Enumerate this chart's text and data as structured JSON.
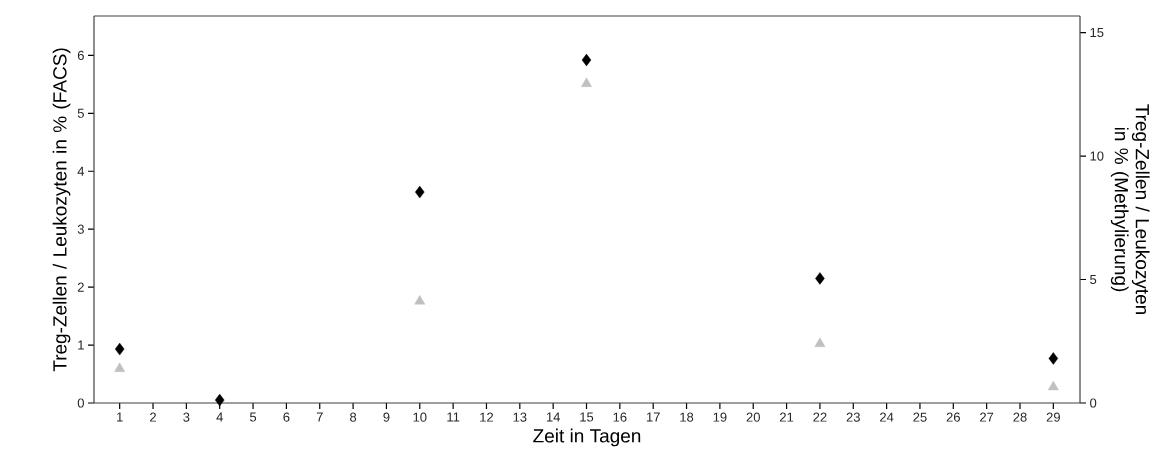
{
  "chart_data": {
    "type": "scatter",
    "xlabel": "Zeit in Tagen",
    "ylabel": "Treg-Zellen / Leukozyten in % (FACS)",
    "y2label": "Treg-Zellen / Leukozyten in % (Methylierung)",
    "x": [
      1,
      4,
      10,
      15,
      22,
      29
    ],
    "xlim": [
      0.23,
      29.8
    ],
    "xticks": [
      1,
      2,
      3,
      4,
      5,
      6,
      7,
      8,
      9,
      10,
      11,
      12,
      13,
      14,
      15,
      16,
      17,
      18,
      19,
      20,
      21,
      22,
      23,
      24,
      25,
      26,
      27,
      28,
      29
    ],
    "ylim": [
      0,
      6.68
    ],
    "yticks": [
      0,
      1,
      2,
      3,
      4,
      5,
      6
    ],
    "y2lim": [
      0,
      15.67
    ],
    "y2ticks": [
      0,
      5,
      10,
      15
    ],
    "grid": false,
    "series": [
      {
        "color": "#000000",
        "marker": "diamond",
        "values": [
          0.93,
          0.05,
          3.64,
          5.92,
          2.15,
          0.77
        ]
      },
      {
        "color": "#c0c0c0",
        "marker": "triangle",
        "axis": "y2",
        "values": [
          1.39,
          null,
          4.12,
          12.93,
          2.4,
          0.65
        ]
      }
    ]
  }
}
